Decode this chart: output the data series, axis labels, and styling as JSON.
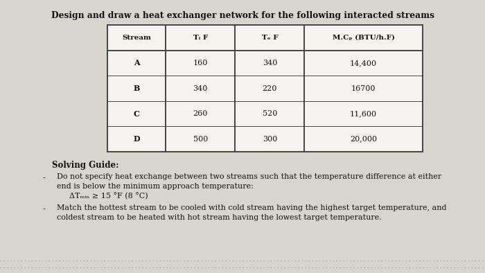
{
  "title": "Design and draw a heat exchanger network for the following interacted streams",
  "table_headers": [
    "Stream",
    "Tᵢ F",
    "Tₒ F",
    "M.Cₚ (BTU/h.F)"
  ],
  "table_data": [
    [
      "A",
      "160",
      "340",
      "14,400"
    ],
    [
      "B",
      "340",
      "220",
      "16700"
    ],
    [
      "C",
      "260",
      "520",
      "11,600"
    ],
    [
      "D",
      "500",
      "300",
      "20,000"
    ]
  ],
  "solving_guide_title": "Solving Guide:",
  "bullet1_line1": "Do not specify heat exchange between two streams such that the temperature difference at either",
  "bullet1_line2": "end is below the minimum approach temperature:",
  "bullet1_line3": "ΔTₘᵢₙ ≥ 15 °F (8 °C)",
  "bullet2_line1": "Match the hottest stream to be cooled with cold stream having the highest target temperature, and",
  "bullet2_line2": "coldest stream to be heated with hot stream having the lowest target temperature.",
  "bg_color": "#d8d4ce",
  "table_bg": "#f5f3f0",
  "text_color": "#111111",
  "border_color": "#444444",
  "dotted_line_color": "#999999"
}
